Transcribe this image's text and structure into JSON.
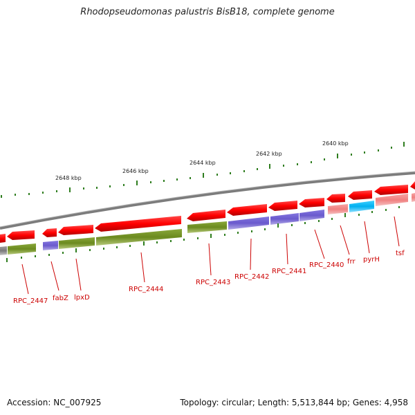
{
  "title": "Rhodopseudomonas palustris BisB18, complete genome",
  "accession": "Accession: NC_007925",
  "topology": "Topology: circular; Length: 5,513,844 bp; Genes: 4,958",
  "scale_labels": [
    "2648 kbp",
    "2646 kbp",
    "2644 kbp",
    "2642 kbp",
    "2640 kbp"
  ],
  "gene_labels": [
    "RPC_2447",
    "fabZ",
    "lpxD",
    "RPC_2444",
    "RPC_2443",
    "RPC_2442",
    "RPC_2441",
    "RPC_2440",
    "frr",
    "pyrH",
    "tsf"
  ],
  "colors": {
    "backbone": "#8a8a8a",
    "forward_gene": "#ff0000",
    "olive": "#6e8b1e",
    "purple": "#6a5acd",
    "pink": "#f08080",
    "cyan": "#00bfff",
    "gray": "#888888",
    "tick": "#2e7d1e",
    "label": "#cc0000"
  }
}
